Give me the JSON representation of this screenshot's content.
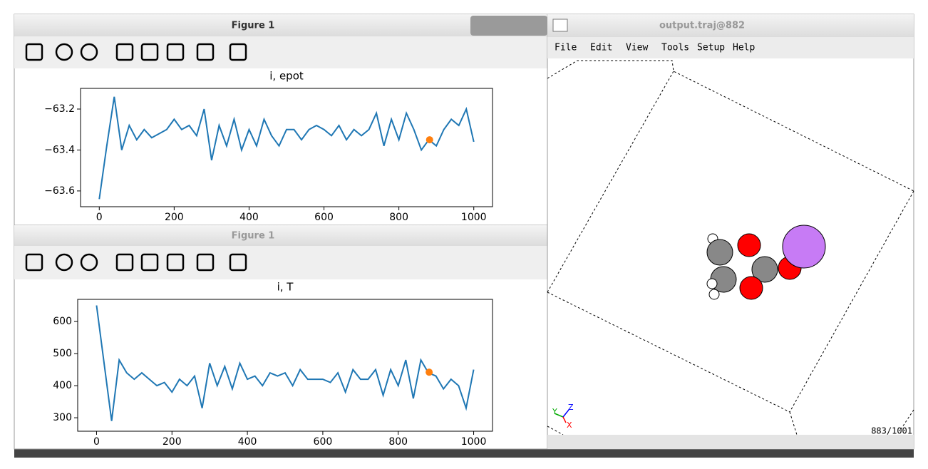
{
  "figure_windows": [
    {
      "title": "Figure 1"
    },
    {
      "title": "Figure 1"
    }
  ],
  "chart_data": [
    {
      "type": "line",
      "title": "i, epot",
      "color": "#1f77b4",
      "x": [
        0,
        20,
        40,
        60,
        80,
        100,
        120,
        140,
        160,
        180,
        200,
        220,
        240,
        260,
        280,
        300,
        320,
        340,
        360,
        380,
        400,
        420,
        440,
        460,
        480,
        500,
        520,
        540,
        560,
        580,
        600,
        620,
        640,
        660,
        680,
        700,
        720,
        740,
        760,
        780,
        800,
        820,
        840,
        860,
        880,
        900,
        920,
        940,
        960,
        980,
        1000
      ],
      "values": [
        -63.64,
        -63.38,
        -63.14,
        -63.4,
        -63.28,
        -63.35,
        -63.3,
        -63.34,
        -63.32,
        -63.3,
        -63.25,
        -63.3,
        -63.28,
        -63.33,
        -63.2,
        -63.45,
        -63.28,
        -63.38,
        -63.25,
        -63.4,
        -63.3,
        -63.38,
        -63.25,
        -63.33,
        -63.38,
        -63.3,
        -63.3,
        -63.35,
        -63.3,
        -63.28,
        -63.3,
        -63.33,
        -63.28,
        -63.35,
        -63.3,
        -63.33,
        -63.3,
        -63.22,
        -63.38,
        -63.25,
        -63.35,
        -63.22,
        -63.3,
        -63.4,
        -63.35,
        -63.38,
        -63.3,
        -63.25,
        -63.28,
        -63.2,
        -63.36
      ],
      "highlight": {
        "x": 882,
        "y": -63.35,
        "color": "#ff7f0e"
      },
      "xlim": [
        -50,
        1050
      ],
      "xticks": [
        0,
        200,
        400,
        600,
        800,
        1000
      ],
      "ylim": [
        -63.677,
        -63.099
      ],
      "yticks": [
        {
          "value": -63.6,
          "label": "−63.6"
        },
        {
          "value": -63.4,
          "label": "−63.4"
        },
        {
          "value": -63.2,
          "label": "−63.2"
        }
      ]
    },
    {
      "type": "line",
      "title": "i, T",
      "color": "#1f77b4",
      "x": [
        0,
        20,
        40,
        60,
        80,
        100,
        120,
        140,
        160,
        180,
        200,
        220,
        240,
        260,
        280,
        300,
        320,
        340,
        360,
        380,
        400,
        420,
        440,
        460,
        480,
        500,
        520,
        540,
        560,
        580,
        600,
        620,
        640,
        660,
        680,
        700,
        720,
        740,
        760,
        780,
        800,
        820,
        840,
        860,
        880,
        900,
        920,
        940,
        960,
        980,
        1000
      ],
      "values": [
        650,
        470,
        290,
        480,
        440,
        420,
        440,
        420,
        400,
        410,
        380,
        420,
        400,
        430,
        330,
        470,
        400,
        460,
        390,
        470,
        420,
        430,
        400,
        440,
        430,
        440,
        400,
        450,
        420,
        420,
        420,
        410,
        440,
        380,
        450,
        420,
        420,
        450,
        370,
        450,
        400,
        480,
        360,
        480,
        440,
        430,
        390,
        420,
        400,
        330,
        450
      ],
      "highlight": {
        "x": 882,
        "y": 442,
        "color": "#ff7f0e"
      },
      "xlim": [
        -50,
        1050
      ],
      "xticks": [
        0,
        200,
        400,
        600,
        800,
        1000
      ],
      "ylim": [
        258,
        669
      ],
      "yticks": [
        300,
        400,
        500,
        600
      ]
    }
  ],
  "viewer": {
    "title": "output.traj@882",
    "menu": [
      "File",
      "Edit",
      "View",
      "Tools",
      "Setup",
      "Help"
    ],
    "axes": [
      "X",
      "Y",
      "Z"
    ],
    "frame": "883/1001"
  }
}
